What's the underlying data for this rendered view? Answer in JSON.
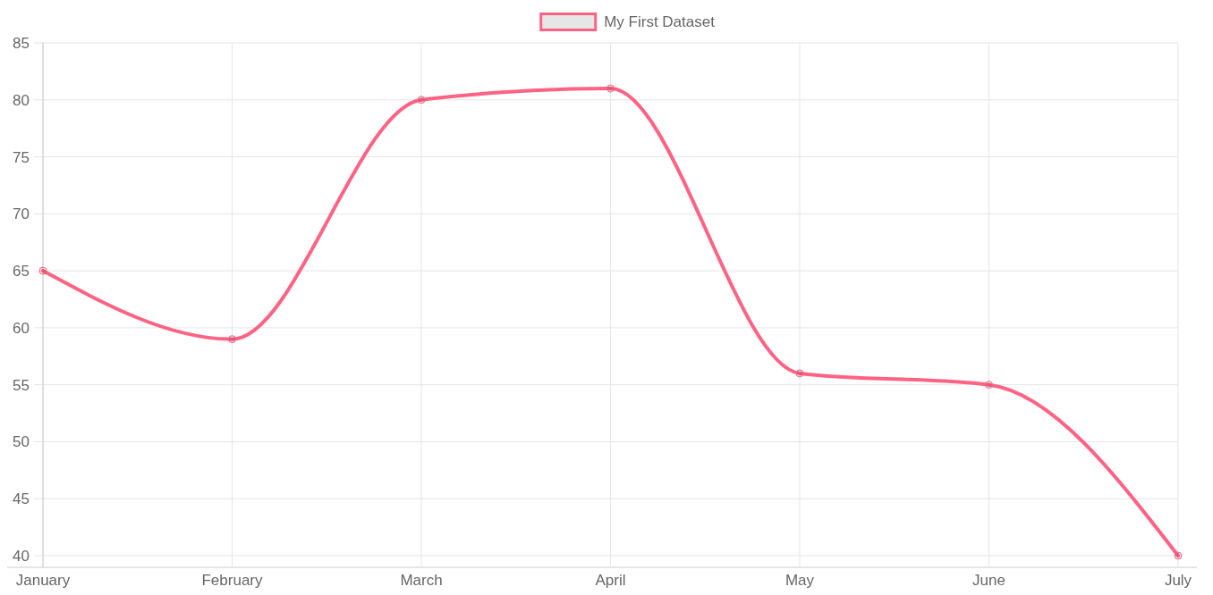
{
  "chart_data": {
    "type": "line",
    "categories": [
      "January",
      "February",
      "March",
      "April",
      "May",
      "June",
      "July"
    ],
    "series": [
      {
        "name": "My First Dataset",
        "color": "#ff6384",
        "values": [
          65,
          59,
          80,
          81,
          56,
          55,
          40
        ]
      }
    ],
    "ylim": [
      40,
      85
    ],
    "yticks": [
      40,
      45,
      50,
      55,
      60,
      65,
      70,
      75,
      80,
      85
    ],
    "grid": true,
    "legend": "top",
    "marker": "circle",
    "line_style": "solid"
  }
}
